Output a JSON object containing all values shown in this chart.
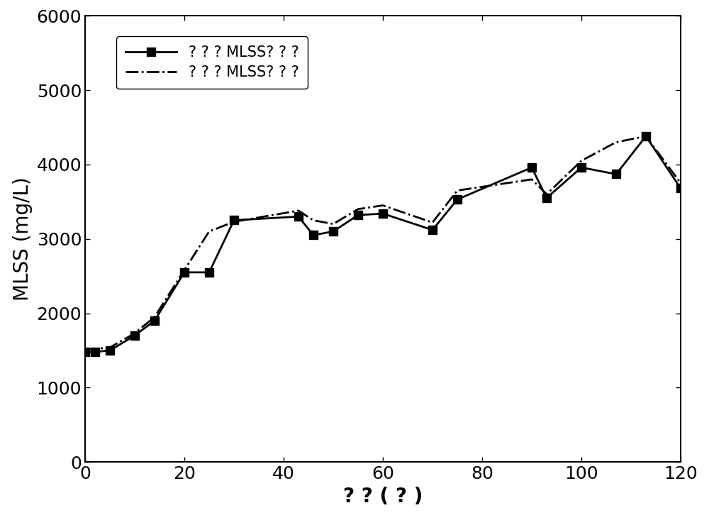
{
  "title": "",
  "xlabel": "? ? ( ? )",
  "ylabel": "MLSS (mg/L)",
  "xlim": [
    0,
    120
  ],
  "ylim": [
    0,
    6000
  ],
  "xticks": [
    0,
    20,
    40,
    60,
    80,
    100,
    120
  ],
  "yticks": [
    0,
    1000,
    2000,
    3000,
    4000,
    5000,
    6000
  ],
  "series1_label": "? ? ? MLSS? ? ?",
  "series2_label": "? ? ? MLSS? ? ?",
  "series1_x": [
    0,
    2,
    5,
    10,
    14,
    20,
    25,
    30,
    43,
    46,
    50,
    55,
    60,
    70,
    75,
    90,
    93,
    100,
    107,
    113,
    120
  ],
  "series1_y": [
    1480,
    1480,
    1500,
    1700,
    1900,
    2550,
    2550,
    3250,
    3300,
    3050,
    3100,
    3320,
    3340,
    3120,
    3530,
    3960,
    3550,
    3960,
    3870,
    4380,
    3680
  ],
  "series2_x": [
    0,
    2,
    5,
    10,
    14,
    20,
    25,
    30,
    43,
    46,
    50,
    55,
    60,
    70,
    75,
    90,
    93,
    100,
    107,
    113,
    120
  ],
  "series2_y": [
    1520,
    1520,
    1540,
    1730,
    1950,
    2580,
    3100,
    3230,
    3380,
    3250,
    3200,
    3400,
    3450,
    3220,
    3650,
    3800,
    3600,
    4050,
    4300,
    4380,
    3750
  ],
  "line1_color": "#000000",
  "line2_color": "#000000",
  "background_color": "#ffffff",
  "marker_size": 8,
  "line_width": 2.0,
  "font_size": 20,
  "tick_font_size": 18,
  "legend_font_size": 15
}
